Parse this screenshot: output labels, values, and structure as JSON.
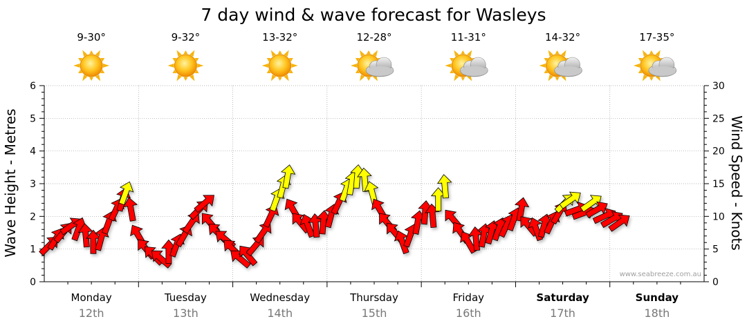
{
  "chart_data": {
    "type": "wind-wave-forecast",
    "title": "7 day wind & wave forecast for Wasleys",
    "ylabel_left": "Wave Height - Metres",
    "ylabel_right": "Wind Speed - Knots",
    "ylim_left": [
      0,
      6
    ],
    "ylim_right": [
      0,
      30
    ],
    "left_ticks": [
      "0",
      "1",
      "2",
      "3",
      "4",
      "5",
      "6"
    ],
    "right_ticks": [
      "0",
      "5",
      "10",
      "15",
      "20",
      "25",
      "30"
    ],
    "credit": "www.seabreeze.com.au",
    "colors": {
      "high_wind": "#ff0000",
      "low_wind": "#ffff00",
      "outline": "#000000"
    },
    "days": [
      {
        "name": "Monday",
        "date": "12th",
        "temp": "9-30°",
        "weather": "sunny",
        "bold": false
      },
      {
        "name": "Tuesday",
        "date": "13th",
        "temp": "9-32°",
        "weather": "sunny",
        "bold": false
      },
      {
        "name": "Wednesday",
        "date": "14th",
        "temp": "13-32°",
        "weather": "sunny",
        "bold": false
      },
      {
        "name": "Thursday",
        "date": "15th",
        "temp": "12-28°",
        "weather": "partly-cloudy",
        "bold": false
      },
      {
        "name": "Friday",
        "date": "16th",
        "temp": "11-31°",
        "weather": "partly-cloudy",
        "bold": false
      },
      {
        "name": "Saturday",
        "date": "17th",
        "temp": "14-32°",
        "weather": "partly-cloudy",
        "bold": true
      },
      {
        "name": "Sunday",
        "date": "18th",
        "temp": "17-35°",
        "weather": "partly-cloudy",
        "bold": true
      }
    ],
    "wind_series": [
      {
        "t": 0.05,
        "knots": 5.5,
        "dir": 225,
        "color": "red"
      },
      {
        "t": 0.12,
        "knots": 6.5,
        "dir": 210,
        "color": "red"
      },
      {
        "t": 0.2,
        "knots": 7.5,
        "dir": 220,
        "color": "red"
      },
      {
        "t": 0.28,
        "knots": 8.5,
        "dir": 235,
        "color": "red"
      },
      {
        "t": 0.36,
        "knots": 8.0,
        "dir": 200,
        "color": "red"
      },
      {
        "t": 0.44,
        "knots": 7.0,
        "dir": 175,
        "color": "red"
      },
      {
        "t": 0.52,
        "knots": 6.0,
        "dir": 180,
        "color": "red"
      },
      {
        "t": 0.6,
        "knots": 6.5,
        "dir": 195,
        "color": "red"
      },
      {
        "t": 0.68,
        "knots": 9.0,
        "dir": 200,
        "color": "red"
      },
      {
        "t": 0.76,
        "knots": 11.0,
        "dir": 205,
        "color": "red"
      },
      {
        "t": 0.83,
        "knots": 12.5,
        "dir": 195,
        "color": "red"
      },
      {
        "t": 0.86,
        "knots": 13.5,
        "dir": 200,
        "color": "yellow"
      },
      {
        "t": 0.92,
        "knots": 11.0,
        "dir": 170,
        "color": "red"
      },
      {
        "t": 1.0,
        "knots": 7.0,
        "dir": 150,
        "color": "red"
      },
      {
        "t": 1.08,
        "knots": 5.0,
        "dir": 140,
        "color": "red"
      },
      {
        "t": 1.16,
        "knots": 4.0,
        "dir": 135,
        "color": "red"
      },
      {
        "t": 1.24,
        "knots": 3.5,
        "dir": 130,
        "color": "red"
      },
      {
        "t": 1.32,
        "knots": 4.5,
        "dir": 180,
        "color": "red"
      },
      {
        "t": 1.4,
        "knots": 5.5,
        "dir": 200,
        "color": "red"
      },
      {
        "t": 1.48,
        "knots": 7.0,
        "dir": 210,
        "color": "red"
      },
      {
        "t": 1.56,
        "knots": 9.0,
        "dir": 215,
        "color": "red"
      },
      {
        "t": 1.64,
        "knots": 11.0,
        "dir": 225,
        "color": "red"
      },
      {
        "t": 1.7,
        "knots": 12.0,
        "dir": 230,
        "color": "red"
      },
      {
        "t": 1.76,
        "knots": 9.0,
        "dir": 140,
        "color": "red"
      },
      {
        "t": 1.84,
        "knots": 7.5,
        "dir": 135,
        "color": "red"
      },
      {
        "t": 1.92,
        "knots": 6.5,
        "dir": 130,
        "color": "red"
      },
      {
        "t": 2.0,
        "knots": 5.0,
        "dir": 135,
        "color": "red"
      },
      {
        "t": 2.08,
        "knots": 3.5,
        "dir": 130,
        "color": "red"
      },
      {
        "t": 2.16,
        "knots": 4.0,
        "dir": 140,
        "color": "red"
      },
      {
        "t": 2.24,
        "knots": 5.5,
        "dir": 220,
        "color": "red"
      },
      {
        "t": 2.32,
        "knots": 7.5,
        "dir": 215,
        "color": "red"
      },
      {
        "t": 2.4,
        "knots": 10.0,
        "dir": 205,
        "color": "red"
      },
      {
        "t": 2.46,
        "knots": 12.5,
        "dir": 200,
        "color": "yellow"
      },
      {
        "t": 2.53,
        "knots": 14.5,
        "dir": 195,
        "color": "yellow"
      },
      {
        "t": 2.58,
        "knots": 16.0,
        "dir": 190,
        "color": "yellow"
      },
      {
        "t": 2.64,
        "knots": 11.0,
        "dir": 150,
        "color": "red"
      },
      {
        "t": 2.72,
        "knots": 9.0,
        "dir": 140,
        "color": "red"
      },
      {
        "t": 2.8,
        "knots": 8.5,
        "dir": 160,
        "color": "red"
      },
      {
        "t": 2.88,
        "knots": 8.5,
        "dir": 175,
        "color": "red"
      },
      {
        "t": 2.96,
        "knots": 9.0,
        "dir": 185,
        "color": "red"
      },
      {
        "t": 3.04,
        "knots": 10.0,
        "dir": 195,
        "color": "red"
      },
      {
        "t": 3.12,
        "knots": 12.0,
        "dir": 205,
        "color": "red"
      },
      {
        "t": 3.2,
        "knots": 14.0,
        "dir": 200,
        "color": "yellow"
      },
      {
        "t": 3.26,
        "knots": 15.0,
        "dir": 190,
        "color": "yellow"
      },
      {
        "t": 3.32,
        "knots": 16.0,
        "dir": 185,
        "color": "yellow"
      },
      {
        "t": 3.4,
        "knots": 15.5,
        "dir": 175,
        "color": "yellow"
      },
      {
        "t": 3.48,
        "knots": 13.5,
        "dir": 165,
        "color": "yellow"
      },
      {
        "t": 3.56,
        "knots": 11.0,
        "dir": 150,
        "color": "red"
      },
      {
        "t": 3.64,
        "knots": 9.0,
        "dir": 140,
        "color": "red"
      },
      {
        "t": 3.72,
        "knots": 7.5,
        "dir": 140,
        "color": "red"
      },
      {
        "t": 3.8,
        "knots": 6.0,
        "dir": 160,
        "color": "red"
      },
      {
        "t": 3.88,
        "knots": 7.0,
        "dir": 200,
        "color": "red"
      },
      {
        "t": 3.96,
        "knots": 9.0,
        "dir": 190,
        "color": "red"
      },
      {
        "t": 4.04,
        "knots": 10.5,
        "dir": 185,
        "color": "red"
      },
      {
        "t": 4.12,
        "knots": 10.0,
        "dir": 175,
        "color": "red"
      },
      {
        "t": 4.18,
        "knots": 12.5,
        "dir": 180,
        "color": "yellow"
      },
      {
        "t": 4.25,
        "knots": 14.5,
        "dir": 175,
        "color": "yellow"
      },
      {
        "t": 4.34,
        "knots": 9.5,
        "dir": 140,
        "color": "red"
      },
      {
        "t": 4.42,
        "knots": 7.5,
        "dir": 145,
        "color": "red"
      },
      {
        "t": 4.5,
        "knots": 6.0,
        "dir": 150,
        "color": "red"
      },
      {
        "t": 4.58,
        "knots": 6.5,
        "dir": 175,
        "color": "red"
      },
      {
        "t": 4.66,
        "knots": 7.0,
        "dir": 190,
        "color": "red"
      },
      {
        "t": 4.74,
        "knots": 7.5,
        "dir": 195,
        "color": "red"
      },
      {
        "t": 4.82,
        "knots": 8.0,
        "dir": 200,
        "color": "red"
      },
      {
        "t": 4.9,
        "knots": 8.5,
        "dir": 205,
        "color": "red"
      },
      {
        "t": 4.98,
        "knots": 9.5,
        "dir": 200,
        "color": "red"
      },
      {
        "t": 5.06,
        "knots": 11.0,
        "dir": 190,
        "color": "red"
      },
      {
        "t": 5.14,
        "knots": 8.5,
        "dir": 140,
        "color": "red"
      },
      {
        "t": 5.22,
        "knots": 8.0,
        "dir": 160,
        "color": "red"
      },
      {
        "t": 5.3,
        "knots": 8.5,
        "dir": 195,
        "color": "red"
      },
      {
        "t": 5.38,
        "knots": 9.0,
        "dir": 205,
        "color": "red"
      },
      {
        "t": 5.46,
        "knots": 10.5,
        "dir": 210,
        "color": "red"
      },
      {
        "t": 5.52,
        "knots": 12.0,
        "dir": 225,
        "color": "yellow"
      },
      {
        "t": 5.58,
        "knots": 12.5,
        "dir": 235,
        "color": "yellow"
      },
      {
        "t": 5.64,
        "knots": 11.0,
        "dir": 250,
        "color": "red"
      },
      {
        "t": 5.72,
        "knots": 10.5,
        "dir": 250,
        "color": "red"
      },
      {
        "t": 5.8,
        "knots": 12.0,
        "dir": 235,
        "color": "yellow"
      },
      {
        "t": 5.86,
        "knots": 11.0,
        "dir": 240,
        "color": "red"
      },
      {
        "t": 5.94,
        "knots": 10.0,
        "dir": 245,
        "color": "red"
      },
      {
        "t": 6.02,
        "knots": 9.5,
        "dir": 240,
        "color": "red"
      },
      {
        "t": 6.1,
        "knots": 9.0,
        "dir": 235,
        "color": "red"
      }
    ]
  }
}
